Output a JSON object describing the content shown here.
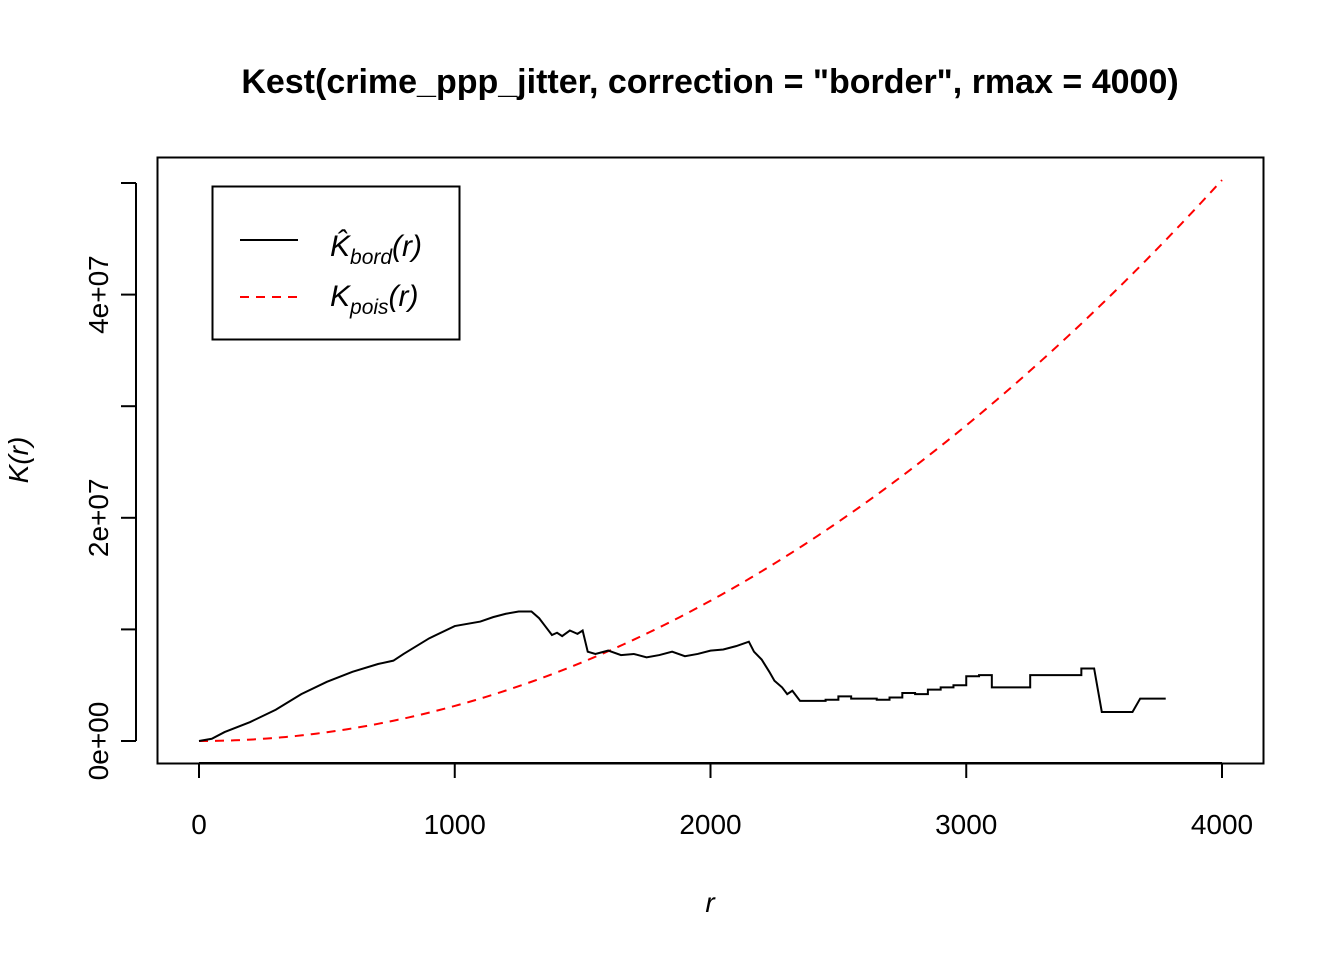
{
  "chart_data": {
    "type": "line",
    "title": "Kest(crime_ppp_jitter, correction = \"border\", rmax = 4000)",
    "xlabel": "r",
    "ylabel": "K(r)",
    "xlim": [
      0,
      4000
    ],
    "ylim": [
      0,
      50000000
    ],
    "x_ticks": [
      0,
      1000,
      2000,
      3000,
      4000
    ],
    "x_tick_labels": [
      "0",
      "1000",
      "2000",
      "3000",
      "4000"
    ],
    "y_ticks": [
      0,
      20000000,
      40000000
    ],
    "y_tick_labels": [
      "0e+00",
      "2e+07",
      "4e+07"
    ],
    "y_minor_ticks": [
      10000000,
      30000000,
      50000000
    ],
    "grid": false,
    "legend_position": "top-left",
    "series": [
      {
        "name": "K̂_bord(r)",
        "legend_main": "K̂",
        "legend_sub": "bord",
        "legend_tail": "(r)",
        "color": "#000000",
        "line_style": "solid",
        "x": [
          0,
          50,
          100,
          200,
          300,
          400,
          500,
          600,
          700,
          760,
          800,
          900,
          1000,
          1100,
          1150,
          1200,
          1250,
          1300,
          1330,
          1350,
          1380,
          1400,
          1420,
          1450,
          1480,
          1500,
          1520,
          1550,
          1600,
          1650,
          1700,
          1750,
          1800,
          1850,
          1900,
          1950,
          2000,
          2050,
          2100,
          2150,
          2170,
          2200,
          2230,
          2250,
          2280,
          2300,
          2320,
          2350,
          2400,
          2450,
          2500,
          2550,
          2600,
          2650,
          2700,
          2750,
          2800,
          2850,
          2900,
          2950,
          3000,
          3050,
          3100,
          3150,
          3200,
          3250,
          3300,
          3350,
          3400,
          3450,
          3500,
          3530,
          3550,
          3600,
          3650,
          3680,
          3700,
          3750,
          3780
        ],
        "y": [
          0,
          200000,
          800000,
          1700000,
          2800000,
          4200000,
          5300000,
          6200000,
          6900000,
          7200000,
          7800000,
          9200000,
          10300000,
          10700000,
          11100000,
          11400000,
          11600000,
          11600000,
          11000000,
          10400000,
          9500000,
          9700000,
          9400000,
          9900000,
          9600000,
          9900000,
          8000000,
          7800000,
          8100000,
          7700000,
          7800000,
          7500000,
          7700000,
          8000000,
          7600000,
          7800000,
          8100000,
          8200000,
          8500000,
          8900000,
          8000000,
          7300000,
          6200000,
          5400000,
          4800000,
          4200000,
          4500000,
          3600000,
          3600000,
          3700000,
          4000000,
          3800000,
          3800000,
          3700000,
          3900000,
          4300000,
          4200000,
          4600000,
          4800000,
          5000000,
          5800000,
          5900000,
          4800000,
          4800000,
          4800000,
          5900000,
          5900000,
          5900000,
          5900000,
          6500000,
          6500000,
          2600000,
          2600000,
          2600000,
          2600000,
          3800000,
          3800000,
          3800000,
          3800000
        ]
      },
      {
        "name": "K_pois(r)",
        "legend_main": "K",
        "legend_sub": "pois",
        "legend_tail": "(r)",
        "color": "#ff0000",
        "line_style": "dashed",
        "formula": "pi * r^2",
        "x_range": [
          0,
          4000
        ]
      }
    ]
  }
}
